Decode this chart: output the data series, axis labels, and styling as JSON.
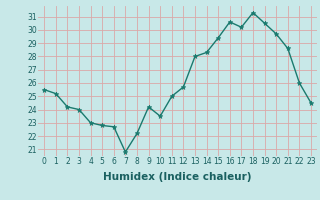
{
  "x": [
    0,
    1,
    2,
    3,
    4,
    5,
    6,
    7,
    8,
    9,
    10,
    11,
    12,
    13,
    14,
    15,
    16,
    17,
    18,
    19,
    20,
    21,
    22,
    23
  ],
  "y": [
    25.5,
    25.2,
    24.2,
    24.0,
    23.0,
    22.8,
    22.7,
    20.8,
    22.2,
    24.2,
    23.5,
    25.0,
    25.7,
    28.0,
    28.3,
    29.4,
    30.6,
    30.2,
    31.3,
    30.5,
    29.7,
    28.6,
    26.0,
    24.5
  ],
  "xlim": [
    -0.5,
    23.5
  ],
  "ylim": [
    20.5,
    31.8
  ],
  "yticks": [
    21,
    22,
    23,
    24,
    25,
    26,
    27,
    28,
    29,
    30,
    31
  ],
  "xticks": [
    0,
    1,
    2,
    3,
    4,
    5,
    6,
    7,
    8,
    9,
    10,
    11,
    12,
    13,
    14,
    15,
    16,
    17,
    18,
    19,
    20,
    21,
    22,
    23
  ],
  "xlabel": "Humidex (Indice chaleur)",
  "line_color": "#1a7a6e",
  "marker": "*",
  "marker_size": 3.5,
  "bg_color": "#c8e8e8",
  "grid_color": "#dba8a8",
  "tick_fontsize": 5.5,
  "xlabel_fontsize": 7.5,
  "line_width": 1.0
}
